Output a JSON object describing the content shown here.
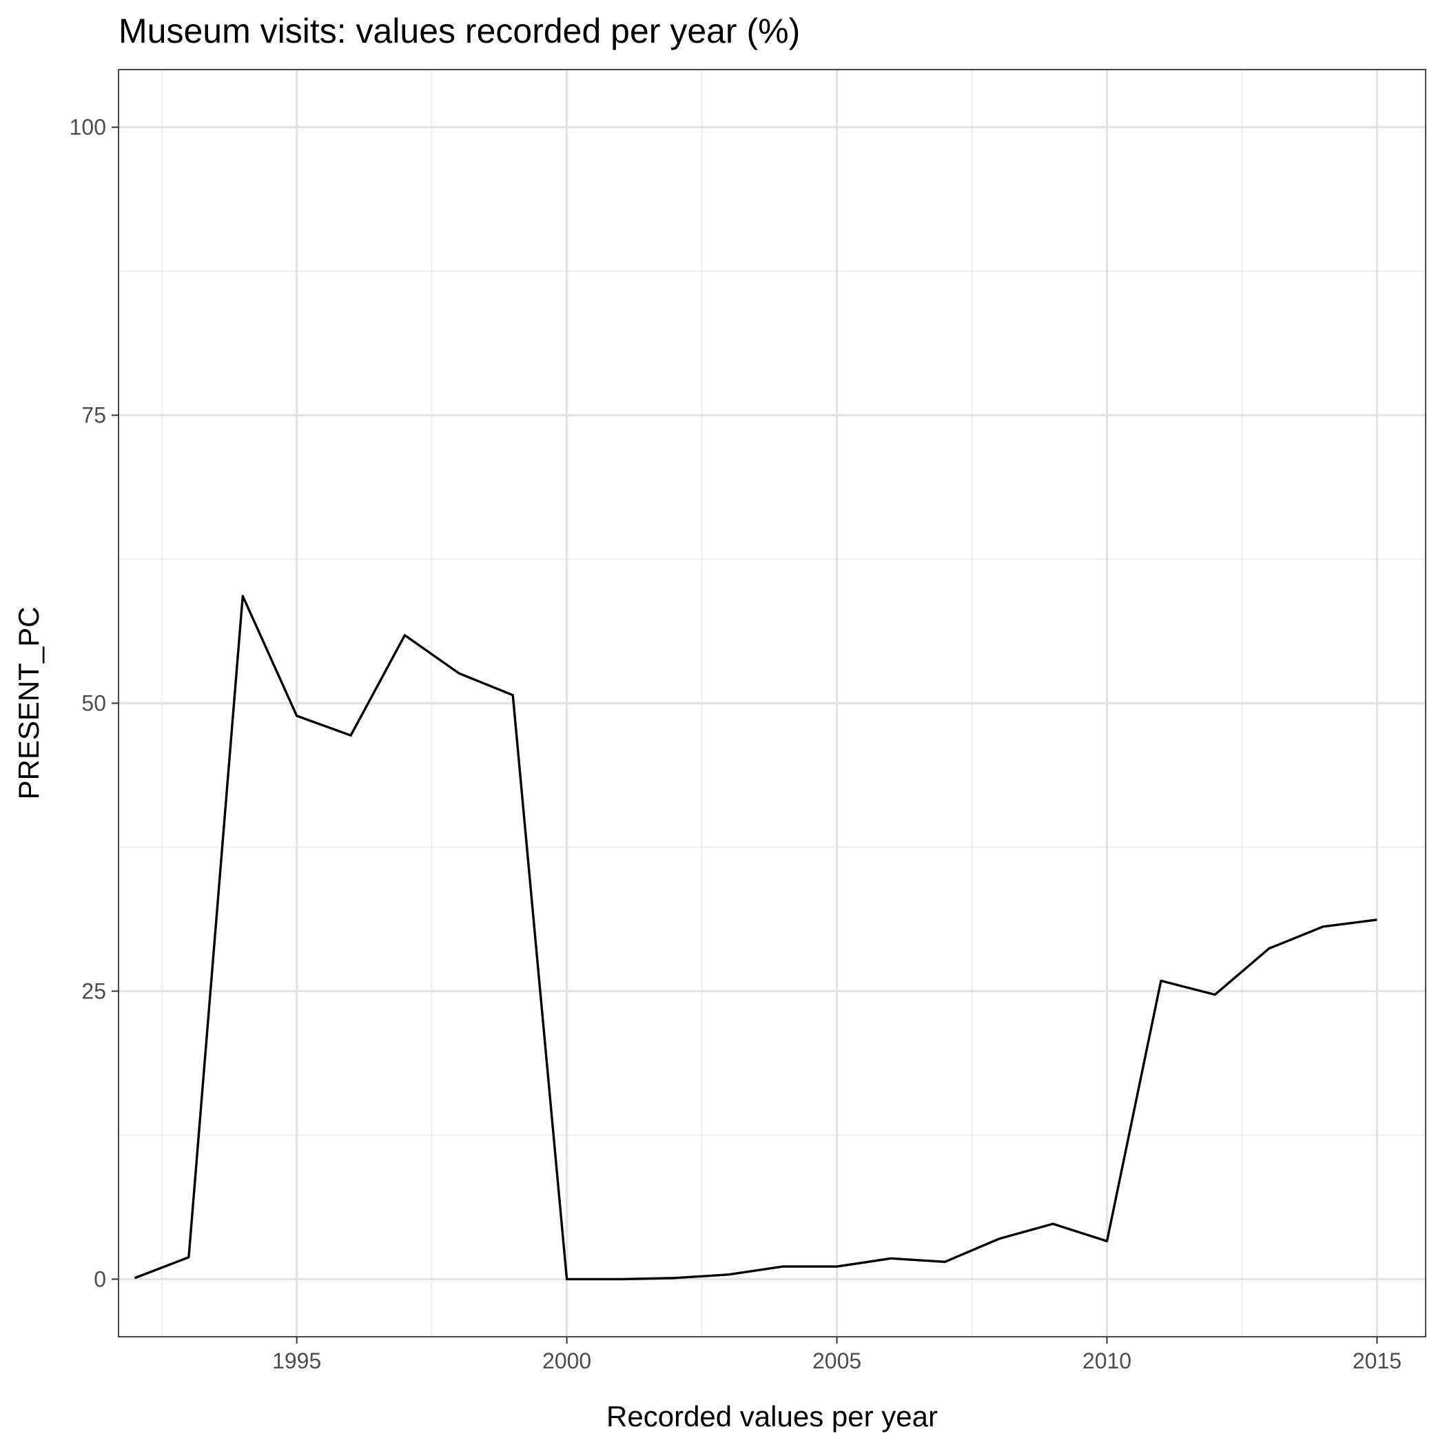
{
  "chart_data": {
    "type": "line",
    "title": "Museum visits: values recorded per year (%)",
    "xlabel": "Recorded values per year",
    "ylabel": "PRESENT_PC",
    "xlim": [
      1991.7,
      2015.9
    ],
    "ylim": [
      -5,
      105
    ],
    "x_ticks": [
      1995,
      2000,
      2005,
      2010,
      2015
    ],
    "x_minor_ticks": [
      1992.5,
      1997.5,
      2002.5,
      2007.5,
      2012.5
    ],
    "y_ticks": [
      0,
      25,
      50,
      75,
      100
    ],
    "y_minor_ticks": [
      12.5,
      37.5,
      62.5,
      87.5
    ],
    "x_tick_labels": [
      "1995",
      "2000",
      "2005",
      "2010",
      "2015"
    ],
    "y_tick_labels": [
      "0",
      "25",
      "50",
      "75",
      "100"
    ],
    "grid": true,
    "legend": "none",
    "series": [
      {
        "color": "#000000",
        "x": [
          1992,
          1993,
          1994,
          1995,
          1996,
          1997,
          1998,
          1999,
          2000,
          2001,
          2002,
          2003,
          2004,
          2005,
          2006,
          2007,
          2008,
          2009,
          2010,
          2011,
          2012,
          2013,
          2014,
          2015
        ],
        "values": [
          0.1,
          1.9,
          59.3,
          48.9,
          47.2,
          55.9,
          52.6,
          50.7,
          0.0,
          0.0,
          0.1,
          0.4,
          1.1,
          1.1,
          1.8,
          1.5,
          3.5,
          4.8,
          3.3,
          25.9,
          24.7,
          28.7,
          30.6,
          31.2
        ]
      }
    ]
  }
}
